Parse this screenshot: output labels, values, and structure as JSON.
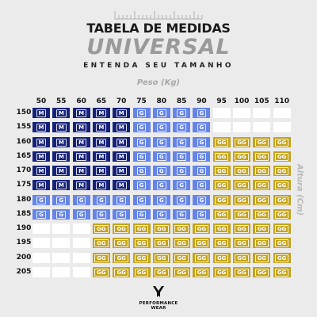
{
  "title": {
    "line1": "TABELA DE MEDIDAS",
    "line2": "UNIVERSAL",
    "subtitle": "ENTENDA SEU TAMANHO"
  },
  "axes": {
    "weight_label": "Peso (Kg)",
    "height_label": "Altura (Cm)"
  },
  "weights": [
    "50",
    "55",
    "60",
    "65",
    "70",
    "75",
    "80",
    "85",
    "90",
    "95",
    "100",
    "105",
    "110"
  ],
  "heights": [
    "150",
    "155",
    "160",
    "165",
    "170",
    "175",
    "180",
    "185",
    "190",
    "195",
    "200",
    "205"
  ],
  "sizes": [
    [
      "M",
      "M",
      "M",
      "M",
      "M",
      "G",
      "G",
      "G",
      "G",
      "",
      "",
      "",
      ""
    ],
    [
      "M",
      "M",
      "M",
      "M",
      "M",
      "G",
      "G",
      "G",
      "G",
      "",
      "",
      "",
      ""
    ],
    [
      "M",
      "M",
      "M",
      "M",
      "M",
      "G",
      "G",
      "G",
      "G",
      "GG",
      "GG",
      "GG",
      "GG"
    ],
    [
      "M",
      "M",
      "M",
      "M",
      "M",
      "G",
      "G",
      "G",
      "G",
      "GG",
      "GG",
      "GG",
      "GG"
    ],
    [
      "M",
      "M",
      "M",
      "M",
      "M",
      "G",
      "G",
      "G",
      "G",
      "GG",
      "GG",
      "GG",
      "GG"
    ],
    [
      "M",
      "M",
      "M",
      "M",
      "M",
      "G",
      "G",
      "G",
      "G",
      "GG",
      "GG",
      "GG",
      "GG"
    ],
    [
      "G",
      "G",
      "G",
      "G",
      "G",
      "G",
      "G",
      "G",
      "G",
      "GG",
      "GG",
      "GG",
      "GG"
    ],
    [
      "G",
      "G",
      "G",
      "G",
      "G",
      "G",
      "G",
      "G",
      "G",
      "GG",
      "GG",
      "GG",
      "GG"
    ],
    [
      "",
      "",
      "",
      "GG",
      "GG",
      "GG",
      "GG",
      "GG",
      "GG",
      "GG",
      "GG",
      "GG",
      "GG"
    ],
    [
      "",
      "",
      "",
      "GG",
      "GG",
      "GG",
      "GG",
      "GG",
      "GG",
      "GG",
      "GG",
      "GG",
      "GG"
    ],
    [
      "",
      "",
      "",
      "GG",
      "GG",
      "GG",
      "GG",
      "GG",
      "GG",
      "GG",
      "GG",
      "GG",
      "GG"
    ],
    [
      "",
      "",
      "",
      "GG",
      "GG",
      "GG",
      "GG",
      "GG",
      "GG",
      "GG",
      "GG",
      "GG",
      "GG"
    ]
  ],
  "colors": {
    "M": "#16227a",
    "G": "#6584e8",
    "GG": "#c4a31a",
    "empty": "#ffffff"
  },
  "brand": {
    "line1": "PERFORMANCE",
    "line2": "WEAR",
    "logo_icon": "pw-logo-icon"
  },
  "decor": {
    "ruler_icon": "ruler-icon"
  }
}
